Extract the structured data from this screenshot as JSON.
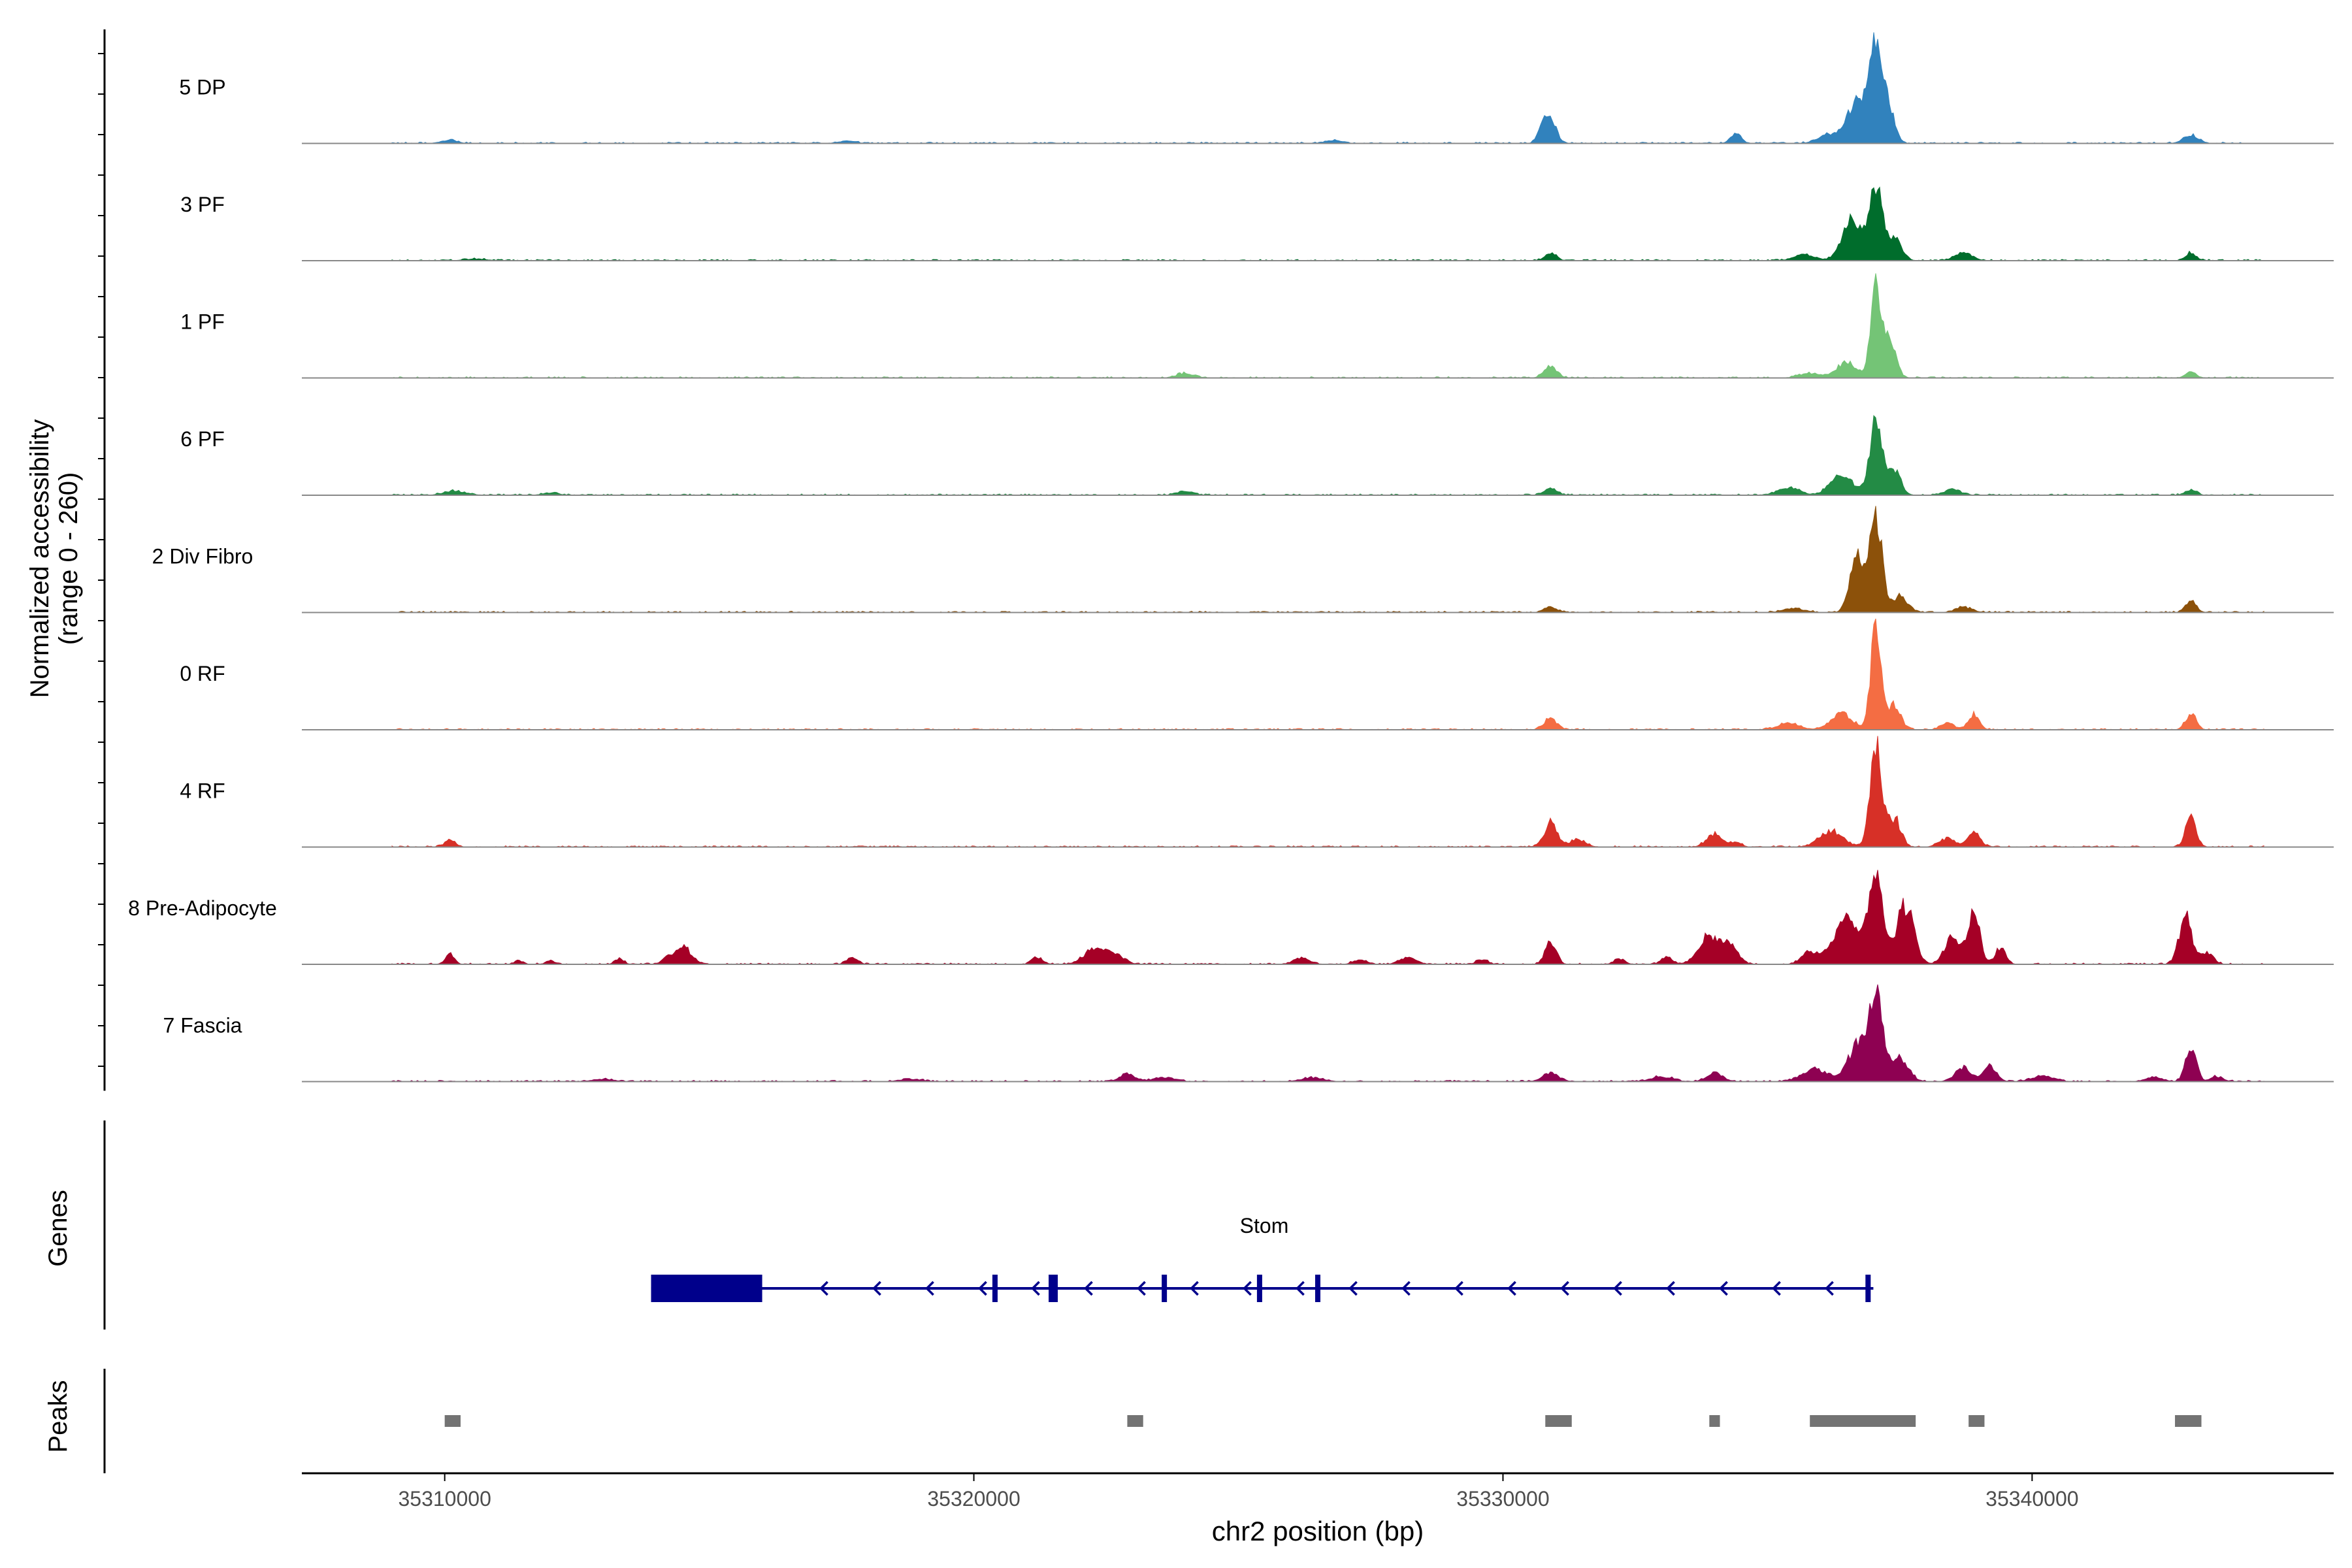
{
  "chart_data": {
    "type": "area",
    "chromosome": "chr2",
    "x_range": [
      35307300,
      35345700
    ],
    "xlabel": "chr2 position (bp)",
    "x_ticks": [
      "35310000",
      "35320000",
      "35330000",
      "35340000"
    ],
    "x_tick_values": [
      35310000,
      35320000,
      35330000,
      35340000
    ],
    "ylabel_line1": "Normalized accessibility",
    "ylabel_line2": "(range 0 - 260)",
    "y_range": [
      0,
      260
    ],
    "genes_label": "Genes",
    "peaks_label": "Peaks",
    "tracks": [
      {
        "name": "5 DP",
        "color": "#3182bd",
        "peaks": [
          [
            35310100,
            10,
            120
          ],
          [
            35317600,
            6,
            150
          ],
          [
            35326800,
            8,
            150
          ],
          [
            35330900,
            55,
            110
          ],
          [
            35330750,
            38,
            90
          ],
          [
            35334400,
            22,
            100
          ],
          [
            35336200,
            22,
            220
          ],
          [
            35337050,
            240,
            120
          ],
          [
            35336700,
            110,
            180
          ],
          [
            35337300,
            80,
            110
          ],
          [
            35343000,
            22,
            140
          ]
        ]
      },
      {
        "name": "3 PF",
        "color": "#006d2c",
        "peaks": [
          [
            35310600,
            4,
            200
          ],
          [
            35330900,
            18,
            110
          ],
          [
            35335700,
            14,
            200
          ],
          [
            35336600,
            105,
            180
          ],
          [
            35337050,
            190,
            120
          ],
          [
            35337400,
            60,
            130
          ],
          [
            35338700,
            20,
            160
          ],
          [
            35343000,
            20,
            100
          ]
        ]
      },
      {
        "name": "1 PF",
        "color": "#74c476",
        "peaks": [
          [
            35324000,
            12,
            150
          ],
          [
            35330900,
            28,
            120
          ],
          [
            35335800,
            12,
            200
          ],
          [
            35336500,
            40,
            180
          ],
          [
            35337050,
            215,
            100
          ],
          [
            35337300,
            90,
            120
          ],
          [
            35343000,
            14,
            100
          ]
        ]
      },
      {
        "name": "6 PF",
        "color": "#238b45",
        "peaks": [
          [
            35310200,
            10,
            200
          ],
          [
            35312000,
            6,
            150
          ],
          [
            35324000,
            10,
            150
          ],
          [
            35330900,
            18,
            120
          ],
          [
            35335400,
            20,
            200
          ],
          [
            35336400,
            55,
            200
          ],
          [
            35337050,
            190,
            120
          ],
          [
            35337400,
            60,
            120
          ],
          [
            35338500,
            14,
            150
          ],
          [
            35343000,
            14,
            100
          ]
        ]
      },
      {
        "name": "2 Div Fibro",
        "color": "#8c510a",
        "peaks": [
          [
            35330900,
            14,
            120
          ],
          [
            35335500,
            10,
            200
          ],
          [
            35336700,
            150,
            130
          ],
          [
            35337050,
            250,
            110
          ],
          [
            35337500,
            40,
            140
          ],
          [
            35338700,
            14,
            150
          ],
          [
            35343000,
            30,
            100
          ]
        ]
      },
      {
        "name": "0 RF",
        "color": "#f46d43",
        "peaks": [
          [
            35330900,
            28,
            120
          ],
          [
            35335400,
            16,
            200
          ],
          [
            35336400,
            40,
            200
          ],
          [
            35337050,
            250,
            100
          ],
          [
            35337400,
            60,
            120
          ],
          [
            35338400,
            18,
            120
          ],
          [
            35338900,
            40,
            100
          ],
          [
            35343000,
            40,
            100
          ]
        ]
      },
      {
        "name": "4 RF",
        "color": "#d73027",
        "peaks": [
          [
            35310100,
            16,
            100
          ],
          [
            35330900,
            60,
            120
          ],
          [
            35331400,
            18,
            150
          ],
          [
            35334000,
            32,
            150
          ],
          [
            35334400,
            12,
            100
          ],
          [
            35336200,
            40,
            220
          ],
          [
            35337050,
            250,
            110
          ],
          [
            35337400,
            70,
            120
          ],
          [
            35338400,
            22,
            150
          ],
          [
            35338900,
            40,
            110
          ],
          [
            35343000,
            72,
            100
          ]
        ]
      },
      {
        "name": "8 Pre-Adipocyte",
        "color": "#a50026",
        "peaks": [
          [
            35310100,
            26,
            80
          ],
          [
            35311400,
            10,
            80
          ],
          [
            35312000,
            8,
            80
          ],
          [
            35313300,
            14,
            80
          ],
          [
            35314500,
            46,
            150
          ],
          [
            35314200,
            16,
            80
          ],
          [
            35317700,
            16,
            100
          ],
          [
            35321200,
            18,
            100
          ],
          [
            35322300,
            40,
            200
          ],
          [
            35322700,
            20,
            150
          ],
          [
            35326200,
            16,
            150
          ],
          [
            35327300,
            12,
            120
          ],
          [
            35328200,
            18,
            150
          ],
          [
            35329600,
            12,
            100
          ],
          [
            35330900,
            60,
            100
          ],
          [
            35332200,
            14,
            100
          ],
          [
            35333100,
            20,
            100
          ],
          [
            35333900,
            70,
            200
          ],
          [
            35334300,
            40,
            150
          ],
          [
            35335800,
            30,
            150
          ],
          [
            35336500,
            110,
            250
          ],
          [
            35337050,
            245,
            130
          ],
          [
            35337600,
            150,
            160
          ],
          [
            35338500,
            70,
            150
          ],
          [
            35338900,
            130,
            110
          ],
          [
            35339400,
            40,
            100
          ],
          [
            35342900,
            120,
            120
          ],
          [
            35343300,
            30,
            120
          ]
        ]
      },
      {
        "name": "7 Fascia",
        "color": "#8e0152",
        "peaks": [
          [
            35313000,
            6,
            200
          ],
          [
            35318800,
            6,
            200
          ],
          [
            35322900,
            18,
            150
          ],
          [
            35323600,
            10,
            200
          ],
          [
            35326400,
            10,
            200
          ],
          [
            35330900,
            22,
            150
          ],
          [
            35333000,
            12,
            200
          ],
          [
            35334000,
            22,
            150
          ],
          [
            35335900,
            30,
            250
          ],
          [
            35336700,
            90,
            180
          ],
          [
            35337050,
            210,
            130
          ],
          [
            35337500,
            60,
            160
          ],
          [
            35338700,
            36,
            150
          ],
          [
            35339200,
            40,
            120
          ],
          [
            35340200,
            14,
            200
          ],
          [
            35342300,
            12,
            150
          ],
          [
            35343000,
            90,
            100
          ],
          [
            35343500,
            12,
            120
          ]
        ]
      }
    ],
    "gene": {
      "name": "Stom",
      "color": "#00008b",
      "start": 35313900,
      "end": 35337000,
      "strand": "-",
      "utr": [
        35313900,
        35316000
      ],
      "exons": [
        35320400,
        35321500,
        35323600,
        35325400,
        35326500,
        35336900
      ]
    },
    "peak_regions": [
      [
        35310000,
        35310300
      ],
      [
        35322900,
        35323200
      ],
      [
        35330800,
        35331300
      ],
      [
        35333900,
        35334100
      ],
      [
        35335800,
        35337800
      ],
      [
        35338800,
        35339100
      ],
      [
        35342700,
        35343200
      ]
    ],
    "peak_color": "#737373"
  }
}
